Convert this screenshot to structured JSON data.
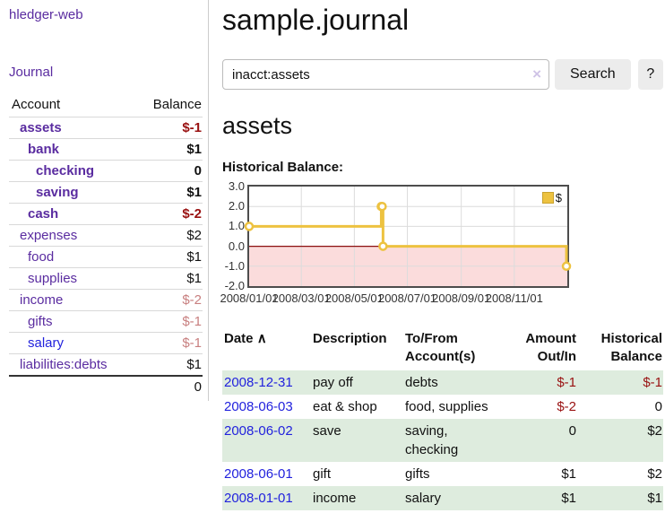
{
  "app": {
    "brand": "hledger-web",
    "nav_journal": "Journal"
  },
  "sidebar": {
    "account_header": "Account",
    "balance_header": "Balance",
    "accounts": [
      {
        "name": "assets",
        "balance": "$-1"
      },
      {
        "name": "bank",
        "balance": "$1"
      },
      {
        "name": "checking",
        "balance": "0"
      },
      {
        "name": "saving",
        "balance": "$1"
      },
      {
        "name": "cash",
        "balance": "$-2"
      },
      {
        "name": "expenses",
        "balance": "$2"
      },
      {
        "name": "food",
        "balance": "$1"
      },
      {
        "name": "supplies",
        "balance": "$1"
      },
      {
        "name": "income",
        "balance": "$-2"
      },
      {
        "name": "gifts",
        "balance": "$-1"
      },
      {
        "name": "salary",
        "balance": "$-1"
      },
      {
        "name": "liabilities:debts",
        "balance": "$1"
      }
    ],
    "total": "0"
  },
  "header": {
    "title": "sample.journal"
  },
  "search": {
    "value": "inacct:assets",
    "clear_icon": "×",
    "search_button": "Search",
    "help_button": "?"
  },
  "account_view": {
    "title": "assets",
    "section_label": "Historical Balance:"
  },
  "chart_data": {
    "type": "line",
    "style": "steps",
    "title": "Historical Balance:",
    "legend": "$",
    "legend_position": "top-right",
    "series": [
      {
        "name": "$",
        "color": "#edc240",
        "points": [
          [
            "2008-01-01",
            1
          ],
          [
            "2008-06-01",
            2
          ],
          [
            "2008-06-02",
            2
          ],
          [
            "2008-06-03",
            0
          ],
          [
            "2008-12-31",
            -1
          ]
        ]
      }
    ],
    "x_domain": [
      "2008-01-01",
      "2009-01-01"
    ],
    "x_ticks": [
      "2008/01/01",
      "2008/03/01",
      "2008/05/01",
      "2008/07/01",
      "2008/09/01",
      "2008/11/01"
    ],
    "y_ticks": [
      3,
      2,
      1,
      0,
      -1,
      -2
    ],
    "y_gridlines": [
      2,
      1,
      -1
    ],
    "ylim": [
      -2,
      3
    ],
    "grid": true,
    "zero_line_color": "#8b1010",
    "negative_region_color": "#fbdcdc"
  },
  "register": {
    "columns": {
      "date": "Date",
      "description": "Description",
      "account": "To/From Account(s)",
      "amount": "Amount Out/In",
      "balance": "Historical Balance"
    },
    "sort_indicator": "∧",
    "rows": [
      {
        "date": "2008-12-31",
        "description": "pay off",
        "account": "debts",
        "amount": "$-1",
        "balance": "$-1"
      },
      {
        "date": "2008-06-03",
        "description": "eat & shop",
        "account": "food, supplies",
        "amount": "$-2",
        "balance": "0"
      },
      {
        "date": "2008-06-02",
        "description": "save",
        "account": "saving, checking",
        "amount": "0",
        "balance": "$2"
      },
      {
        "date": "2008-06-01",
        "description": "gift",
        "account": "gifts",
        "amount": "$1",
        "balance": "$2"
      },
      {
        "date": "2008-01-01",
        "description": "income",
        "account": "salary",
        "amount": "$1",
        "balance": "$1"
      }
    ]
  }
}
